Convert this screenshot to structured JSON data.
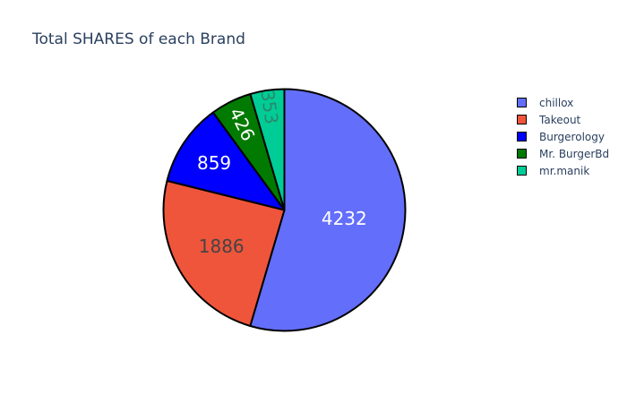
{
  "chart_data": {
    "type": "pie",
    "title": "Total SHARES of each Brand",
    "categories": [
      "chillox",
      "Takeout",
      "Burgerology",
      "Mr. BurgerBd",
      "mr.manik"
    ],
    "values": [
      4232,
      1886,
      859,
      426,
      353
    ],
    "colors": [
      "#636efa",
      "#ef553b",
      "#0000ff",
      "#007a00",
      "#00cc96"
    ],
    "label_colors": [
      "#ffffff",
      "#444444",
      "#ffffff",
      "#ffffff",
      "#2a8a6a"
    ],
    "legend_position": "top-right",
    "direction": "clockwise",
    "start_angle": "12 o'clock"
  }
}
